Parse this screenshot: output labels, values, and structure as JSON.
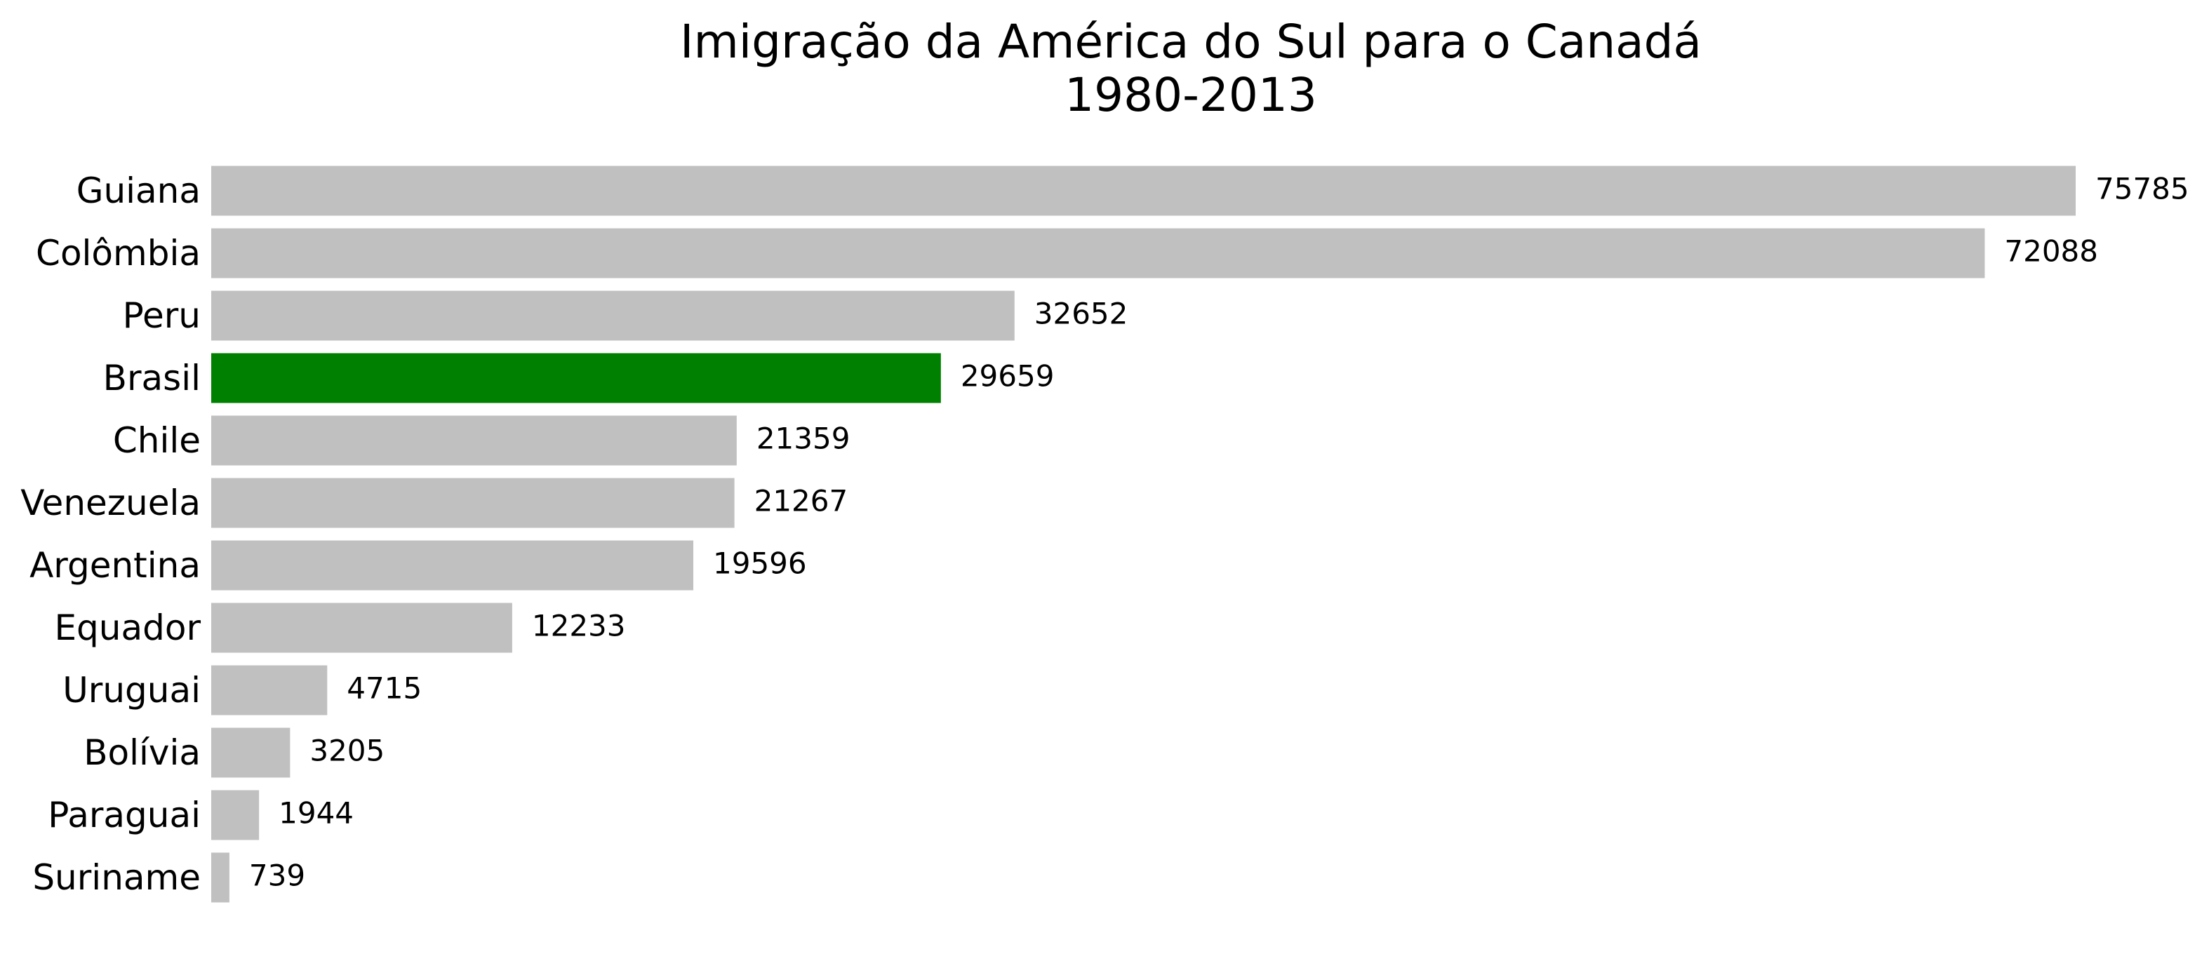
{
  "chart_data": {
    "type": "bar",
    "orientation": "horizontal",
    "title_lines": [
      "Imigração da América do Sul para o Canadá",
      "1980-2013"
    ],
    "xlabel": "",
    "ylabel": "",
    "categories": [
      "Guiana",
      "Colômbia",
      "Peru",
      "Brasil",
      "Chile",
      "Venezuela",
      "Argentina",
      "Equador",
      "Uruguai",
      "Bolívia",
      "Paraguai",
      "Suriname"
    ],
    "values": [
      75785,
      72088,
      32652,
      29659,
      21359,
      21267,
      19596,
      12233,
      4715,
      3205,
      1944,
      739
    ],
    "value_labels": [
      "75785",
      "72088",
      "32652",
      "29659",
      "21359",
      "21267",
      "19596",
      "12233",
      "4715",
      "3205",
      "1944",
      "739"
    ],
    "xlim": [
      0,
      75785
    ],
    "grid": false,
    "axes_visible": false,
    "colors": {
      "default_bar": "#c0c0c0",
      "highlight_bar": "#008000"
    },
    "highlight_category": "Brasil"
  }
}
